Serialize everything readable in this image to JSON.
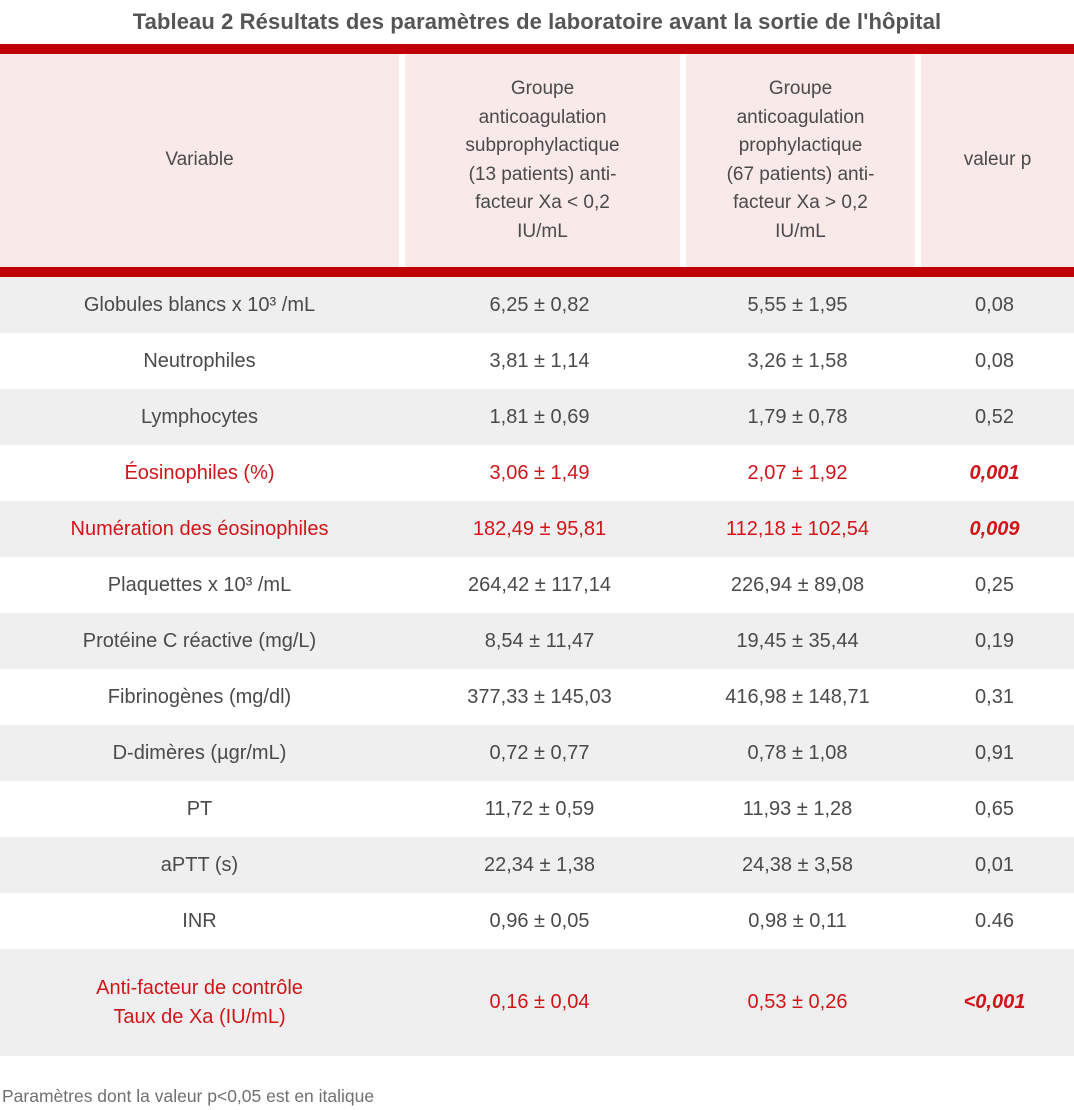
{
  "title": "Tableau 2 Résultats des paramètres de laboratoire avant la sortie de l'hôpital",
  "colors": {
    "accent_red_bar": "#c00009",
    "highlight_text_red": "#d0151a",
    "header_bg_pink": "#f9e9e9",
    "row_alt_gray": "#efefef"
  },
  "table": {
    "columns": [
      {
        "label": "Variable"
      },
      {
        "label": "Groupe anticoagulation subprophylactique (13 patients) anti-facteur Xa < 0,2 IU/mL"
      },
      {
        "label": "Groupe anticoagulation prophylactique (67 patients) anti-facteur Xa > 0,2 IU/mL"
      },
      {
        "label": "valeur p"
      }
    ],
    "rows": [
      {
        "variable": "Globules blancs x 10³ /mL",
        "group_subprophylactique": "6,25 ± 0,82",
        "group_prophylactique": "5,55 ± 1,95",
        "valeur_p": "0,08",
        "highlighted": false
      },
      {
        "variable": "Neutrophiles",
        "group_subprophylactique": "3,81 ± 1,14",
        "group_prophylactique": "3,26 ± 1,58",
        "valeur_p": "0,08",
        "highlighted": false
      },
      {
        "variable": "Lymphocytes",
        "group_subprophylactique": "1,81 ± 0,69",
        "group_prophylactique": "1,79 ± 0,78",
        "valeur_p": "0,52",
        "highlighted": false
      },
      {
        "variable": "Éosinophiles (%)",
        "group_subprophylactique": "3,06 ± 1,49",
        "group_prophylactique": "2,07 ± 1,92",
        "valeur_p": "0,001",
        "highlighted": true
      },
      {
        "variable": "Numération des éosinophiles",
        "group_subprophylactique": "182,49 ± 95,81",
        "group_prophylactique": "112,18 ± 102,54",
        "valeur_p": "0,009",
        "highlighted": true
      },
      {
        "variable": "Plaquettes x 10³ /mL",
        "group_subprophylactique": "264,42 ± 117,14",
        "group_prophylactique": "226,94 ± 89,08",
        "valeur_p": "0,25",
        "highlighted": false
      },
      {
        "variable": "Protéine C réactive (mg/L)",
        "group_subprophylactique": "8,54 ± 11,47",
        "group_prophylactique": "19,45 ± 35,44",
        "valeur_p": "0,19",
        "highlighted": false
      },
      {
        "variable": "Fibrinogènes (mg/dl)",
        "group_subprophylactique": "377,33 ± 145,03",
        "group_prophylactique": "416,98 ± 148,71",
        "valeur_p": "0,31",
        "highlighted": false
      },
      {
        "variable": "D-dimères (µgr/mL)",
        "group_subprophylactique": "0,72 ± 0,77",
        "group_prophylactique": "0,78 ± 1,08",
        "valeur_p": "0,91",
        "highlighted": false
      },
      {
        "variable": "PT",
        "group_subprophylactique": "11,72 ± 0,59",
        "group_prophylactique": "11,93 ± 1,28",
        "valeur_p": "0,65",
        "highlighted": false
      },
      {
        "variable": "aPTT (s)",
        "group_subprophylactique": "22,34 ± 1,38",
        "group_prophylactique": "24,38 ± 3,58",
        "valeur_p": "0,01",
        "highlighted": false
      },
      {
        "variable": "INR",
        "group_subprophylactique": "0,96 ± 0,05",
        "group_prophylactique": "0,98 ± 0,11",
        "valeur_p": "0.46",
        "highlighted": false
      },
      {
        "variable": "Anti-facteur de contrôle\nTaux de Xa (IU/mL)",
        "group_subprophylactique": "0,16 ± 0,04",
        "group_prophylactique": "0,53 ± 0,26",
        "valeur_p": "<0,001",
        "highlighted": true
      }
    ]
  },
  "footnote": "Paramètres dont la valeur p<0,05 est en italique"
}
